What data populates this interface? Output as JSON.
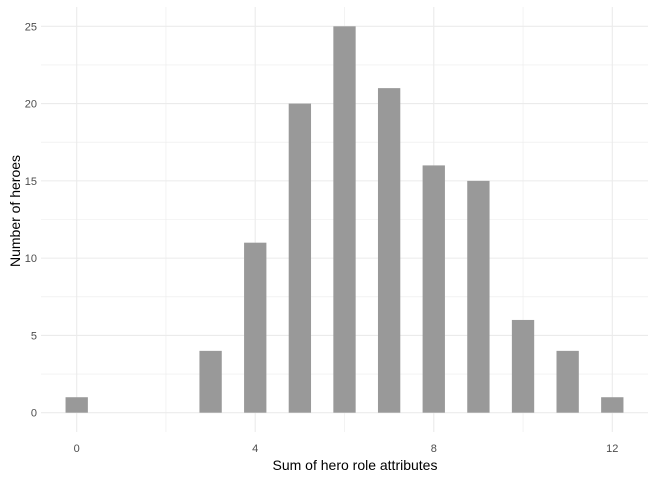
{
  "chart_data": {
    "type": "bar",
    "title": "",
    "xlabel": "Sum of hero role attributes",
    "ylabel": "Number of heroes",
    "x": [
      0,
      3,
      4,
      5,
      6,
      7,
      8,
      9,
      10,
      11,
      12
    ],
    "values": [
      1,
      4,
      11,
      20,
      25,
      21,
      16,
      15,
      6,
      4,
      1
    ],
    "xlim": [
      -0.8,
      12.8
    ],
    "ylim": [
      -1.25,
      26.25
    ],
    "xticks": [
      0,
      4,
      8,
      12
    ],
    "xtick_labels": [
      "0",
      "4",
      "8",
      "12"
    ],
    "yticks": [
      0,
      5,
      10,
      15,
      20,
      25
    ],
    "ytick_labels": [
      "0",
      "5",
      "10",
      "15",
      "20",
      "25"
    ],
    "bar_color": "#999999",
    "grid": true,
    "grid_color": "#ebebeb",
    "legend": "none"
  }
}
